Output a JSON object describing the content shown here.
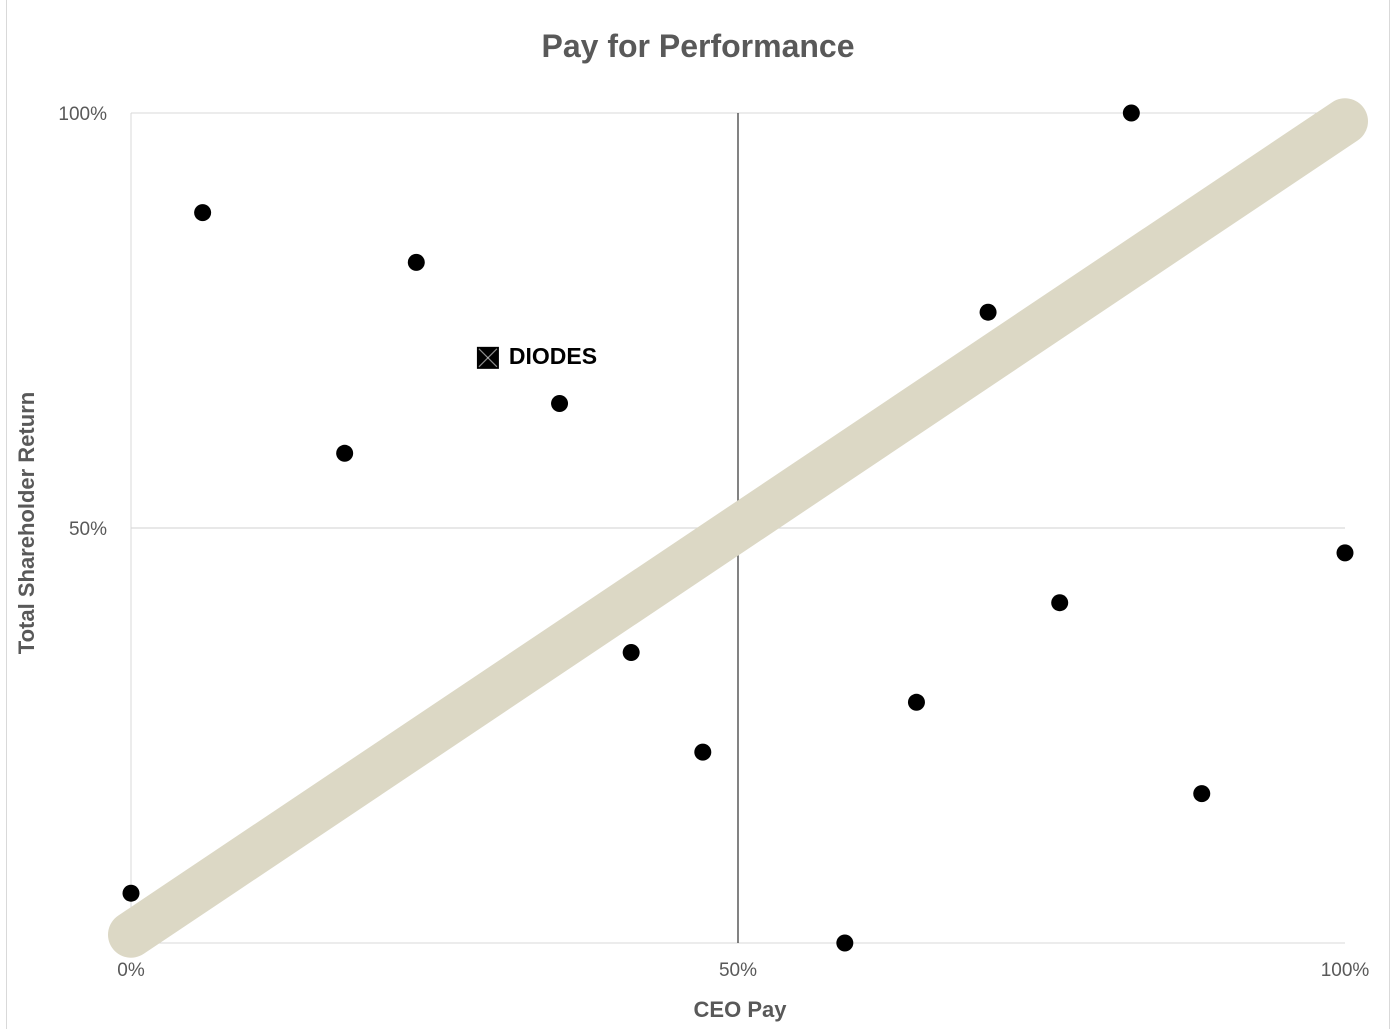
{
  "chart_data": {
    "type": "scatter",
    "title": "Pay for Performance",
    "xlabel": "CEO Pay",
    "ylabel": "Total Shareholder Return",
    "xlim": [
      0,
      100
    ],
    "ylim": [
      0,
      100
    ],
    "x_ticks": [
      "0%",
      "50%",
      "100%"
    ],
    "y_ticks": [
      "50%",
      "100%"
    ],
    "grid": true,
    "colors": {
      "points": "#000000",
      "trend_band": "#dcd8c5",
      "grid": "#d9d9d9",
      "center_line": "#404040",
      "text": "#595959"
    },
    "trend_line": {
      "from": [
        0,
        1
      ],
      "to": [
        100,
        99
      ]
    },
    "series": [
      {
        "values": [
          {
            "x": 0,
            "y": 6
          },
          {
            "x": 5.9,
            "y": 88
          },
          {
            "x": 17.6,
            "y": 59
          },
          {
            "x": 23.5,
            "y": 82
          },
          {
            "x": 35.3,
            "y": 65
          },
          {
            "x": 41.2,
            "y": 35
          },
          {
            "x": 47.1,
            "y": 23
          },
          {
            "x": 58.8,
            "y": 0
          },
          {
            "x": 64.7,
            "y": 29
          },
          {
            "x": 70.6,
            "y": 76
          },
          {
            "x": 76.5,
            "y": 41
          },
          {
            "x": 82.4,
            "y": 100
          },
          {
            "x": 88.2,
            "y": 18
          },
          {
            "x": 100,
            "y": 47
          }
        ]
      },
      {
        "name": "DIODES",
        "marker": "square-x",
        "values": [
          {
            "x": 29.4,
            "y": 70.5
          }
        ]
      }
    ]
  }
}
